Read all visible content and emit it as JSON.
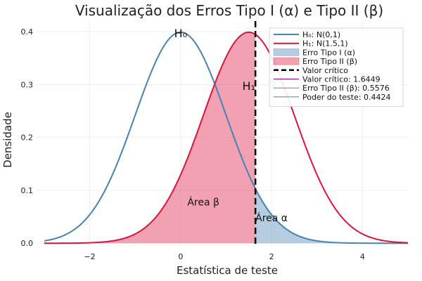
{
  "chart_data": {
    "type": "line",
    "title": "Visualização dos Erros Tipo I (α) e Tipo II (β)",
    "xlabel": "Estatística de teste",
    "ylabel": "Densidade",
    "xlim": [
      -3.2,
      5.0
    ],
    "ylim": [
      -0.005,
      0.42
    ],
    "xticks": [
      -2,
      0,
      2,
      4
    ],
    "xtick_labels": [
      "−2",
      "0",
      "2",
      "4"
    ],
    "yticks": [
      0.0,
      0.1,
      0.2,
      0.3,
      0.4
    ],
    "ytick_labels": [
      "0.0",
      "0.1",
      "0.2",
      "0.3",
      "0.4"
    ],
    "grid": true,
    "legend_position": "top-right",
    "critical_value": 1.6449,
    "series": [
      {
        "name": "H₀: N(0,1)",
        "kind": "normal",
        "mean": 0.0,
        "sd": 1.0,
        "color": "#4682b4"
      },
      {
        "name": "H₁: N(1.5,1)",
        "kind": "normal",
        "mean": 1.5,
        "sd": 1.0,
        "color": "#dc143c"
      }
    ],
    "areas": [
      {
        "name": "Erro Tipo I (α)",
        "under": "H₀",
        "from": 1.6449,
        "to": 5.0,
        "color": "#4682b4",
        "opacity": 0.4
      },
      {
        "name": "Erro Tipo II (β)",
        "under": "H₁",
        "from": -3.0,
        "to": 1.6449,
        "color": "#dc143c",
        "opacity": 0.4
      }
    ],
    "legend": [
      {
        "label": "H₀: N(0,1)",
        "kind": "line",
        "color": "#4682b4"
      },
      {
        "label": "H₁: N(1.5,1)",
        "kind": "line",
        "color": "#dc143c"
      },
      {
        "label": "Erro Tipo I (α)",
        "kind": "patch",
        "color": "#4682b4"
      },
      {
        "label": "Erro Tipo II (β)",
        "kind": "patch",
        "color": "#dc143c"
      },
      {
        "label": "Valor crítico",
        "kind": "dash",
        "color": "#000000"
      },
      {
        "label": "Valor crítico: 1.6449",
        "kind": "thin",
        "color": "#8b008b"
      },
      {
        "label": "Erro Tipo II (β): 0.5576",
        "kind": "thin",
        "color": "#708090"
      },
      {
        "label": "Poder do teste: 0.4424",
        "kind": "thin",
        "color": "#4682b4"
      }
    ],
    "annotations": [
      {
        "text": "H₀",
        "x": 0.0,
        "y": 0.397,
        "size": "large"
      },
      {
        "text": "H₁",
        "x": 1.5,
        "y": 0.297,
        "size": "large"
      },
      {
        "text": "Área β",
        "x": 0.5,
        "y": 0.078,
        "size": "medium"
      },
      {
        "text": "Área α",
        "x": 2.0,
        "y": 0.048,
        "size": "medium"
      }
    ]
  }
}
